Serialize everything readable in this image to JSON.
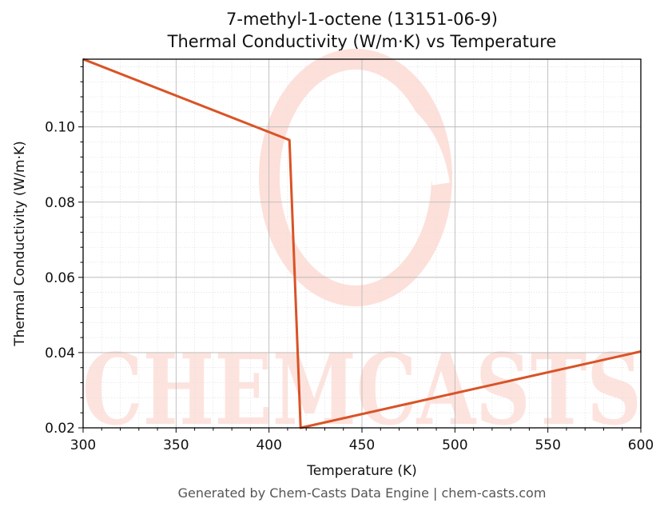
{
  "page": {
    "title_line1": "7-methyl-1-octene (13151-06-9)",
    "title_line2": "Thermal Conductivity (W/m·K) vs Temperature",
    "footer": "Generated by Chem-Casts Data Engine | chem-casts.com",
    "watermark_text": "CHEMCASTS"
  },
  "chart_data": {
    "type": "line",
    "title": "7-methyl-1-octene (13151-06-9)\nThermal Conductivity (W/m·K) vs Temperature",
    "xlabel": "Temperature (K)",
    "ylabel": "Thermal Conductivity (W/m·K)",
    "xlim": [
      300,
      600
    ],
    "ylim": [
      0.02,
      0.118
    ],
    "xticks": [
      300,
      350,
      400,
      450,
      500,
      550,
      600
    ],
    "xtick_labels": [
      "300",
      "350",
      "400",
      "450",
      "500",
      "550",
      "600"
    ],
    "yticks": [
      0.02,
      0.04,
      0.06,
      0.08,
      0.1
    ],
    "ytick_labels": [
      "0.02",
      "0.04",
      "0.06",
      "0.08",
      "0.10"
    ],
    "grid": true,
    "minor_grid": true,
    "series": [
      {
        "color": "#d95326",
        "x": [
          300,
          411,
          417,
          600
        ],
        "y": [
          0.118,
          0.0965,
          0.02,
          0.0403
        ]
      }
    ]
  }
}
